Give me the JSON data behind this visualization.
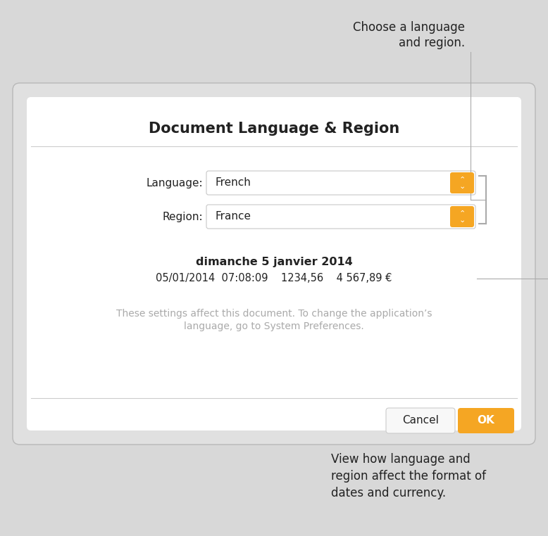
{
  "bg_color": "#d8d8d8",
  "dialog_bg": "#e0e0e0",
  "dialog_inner_bg": "#ffffff",
  "title": "Document Language & Region",
  "title_fontsize": 15,
  "language_label": "Language:",
  "language_value": "French",
  "region_label": "Region:",
  "region_value": "France",
  "date_long": "dimanche 5 janvier 2014",
  "date_short_line": "05/01/2014  07:08:09    1234,56    4 567,89 €",
  "info_line1": "These settings affect this document. To change the application’s",
  "info_line2": "language, go to System Preferences.",
  "cancel_label": "Cancel",
  "ok_label": "OK",
  "ok_color": "#f5a623",
  "ok_text_color": "#ffffff",
  "dropdown_border_color": "#c8c8c8",
  "dropdown_bg": "#ffffff",
  "arrow_btn_color": "#f5a623",
  "callout_top_line1": "Choose a language",
  "callout_top_line2": "and region.",
  "callout_bottom_line1": "View how language and",
  "callout_bottom_line2": "region affect the format of",
  "callout_bottom_line3": "dates and currency.",
  "separator_color": "#cccccc",
  "bracket_color": "#aaaaaa",
  "text_color": "#222222",
  "info_text_color": "#aaaaaa",
  "line_color": "#aaaaaa"
}
